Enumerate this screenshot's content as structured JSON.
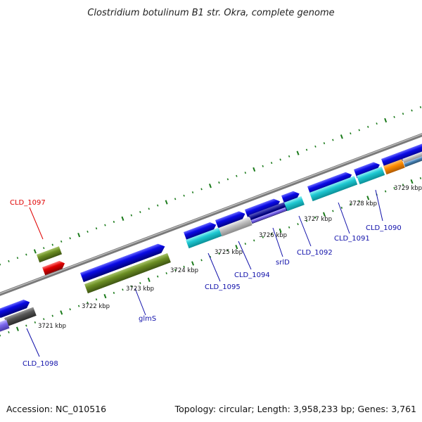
{
  "title": "Clostridium botulinum B1 str. Okra, complete genome",
  "footer": {
    "accession": "Accession: NC_010516",
    "summary": "Topology: circular; Length: 3,958,233 bp; Genes: 3,761"
  },
  "ruler": [
    "3721 kbp",
    "3722 kbp",
    "3723 kbp",
    "3724 kbp",
    "3725 kbp",
    "3726 kbp",
    "3727 kbp",
    "3728 kbp",
    "3729 kbp"
  ],
  "gene_labels": [
    "CLD_1097",
    "CLD_1098",
    "glmS",
    "CLD_1095",
    "CLD_1094",
    "srlD",
    "CLD_1092",
    "CLD_1091",
    "CLD_1090"
  ],
  "colors": {
    "cds": "#0a0ae6",
    "rna": "#e00000",
    "feature_olive": "#6b8e23",
    "feature_cyan": "#1ec8d2",
    "feature_gray": "#c0c0c0",
    "feature_dark": "#555555",
    "feature_navy": "#000080",
    "feature_purple": "#7b68ee",
    "feature_orange": "#ff8c00",
    "backbone": "#8c8c8c",
    "tick": "#1a7a1a",
    "label_blue": "#1010aa",
    "label_red": "#e00000"
  }
}
